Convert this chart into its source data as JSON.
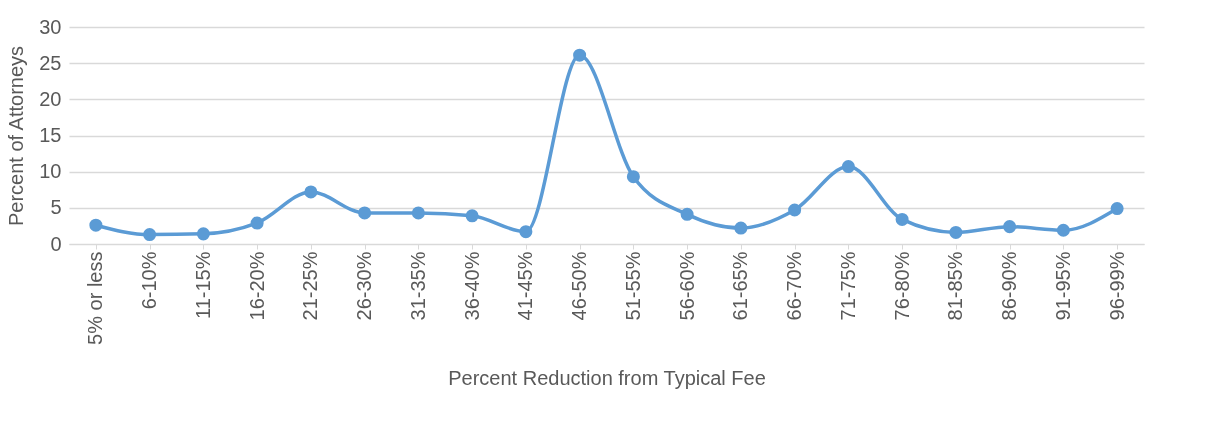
{
  "chart_data": {
    "type": "line",
    "xlabel": "Percent Reduction from Typical Fee",
    "ylabel": "Percent of Attorneys",
    "categories": [
      "5% or less",
      "6-10%",
      "11-15%",
      "16-20%",
      "21-25%",
      "26-30%",
      "31-35%",
      "36-40%",
      "41-45%",
      "46-50%",
      "51-55%",
      "56-60%",
      "61-65%",
      "66-70%",
      "71-75%",
      "76-80%",
      "81-85%",
      "86-90%",
      "91-95%",
      "96-99%"
    ],
    "series": [
      {
        "color": "#5b9bd5",
        "values": [
          2.6,
          1.3,
          1.4,
          2.9,
          7.2,
          4.3,
          4.3,
          3.9,
          1.7,
          26.1,
          9.3,
          4.1,
          2.2,
          4.7,
          10.7,
          3.4,
          1.6,
          2.4,
          1.9,
          4.9
        ]
      }
    ],
    "ylim": [
      0,
      30
    ],
    "yticks": [
      0,
      5,
      10,
      15,
      20,
      25,
      30
    ],
    "grid": "y",
    "legend": false,
    "marker": "circle",
    "line_style": "solid"
  }
}
